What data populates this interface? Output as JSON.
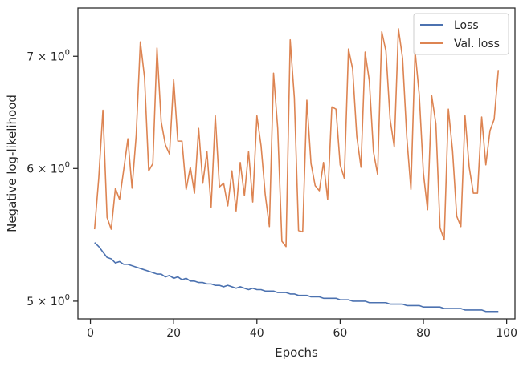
{
  "chart_data": {
    "type": "line",
    "title": "",
    "xlabel": "Epochs",
    "ylabel": "Negative log-likelihood",
    "xlim": [
      -3,
      102
    ],
    "ylim": [
      4.88,
      7.48
    ],
    "yscale": "log",
    "grid": false,
    "legend": "top-right",
    "x_ticks": [
      0,
      20,
      40,
      60,
      80,
      100
    ],
    "y_ticks": [
      {
        "value": 5,
        "mantissa": "5",
        "base": "10",
        "exp": "0"
      },
      {
        "value": 6,
        "mantissa": "6",
        "base": "10",
        "exp": "0"
      },
      {
        "value": 7,
        "mantissa": "7",
        "base": "10",
        "exp": "0"
      }
    ],
    "x": [
      1,
      2,
      3,
      4,
      5,
      6,
      7,
      8,
      9,
      10,
      11,
      12,
      13,
      14,
      15,
      16,
      17,
      18,
      19,
      20,
      21,
      22,
      23,
      24,
      25,
      26,
      27,
      28,
      29,
      30,
      31,
      32,
      33,
      34,
      35,
      36,
      37,
      38,
      39,
      40,
      41,
      42,
      43,
      44,
      45,
      46,
      47,
      48,
      49,
      50,
      51,
      52,
      53,
      54,
      55,
      56,
      57,
      58,
      59,
      60,
      61,
      62,
      63,
      64,
      65,
      66,
      67,
      68,
      69,
      70,
      71,
      72,
      73,
      74,
      75,
      76,
      77,
      78,
      79,
      80,
      81,
      82,
      83,
      84,
      85,
      86,
      87,
      88,
      89,
      90,
      91,
      92,
      93,
      94,
      95,
      96,
      97,
      98
    ],
    "series": [
      {
        "name": "Loss",
        "color": "#4c72b0",
        "values": [
          5.42,
          5.39,
          5.35,
          5.31,
          5.3,
          5.27,
          5.28,
          5.26,
          5.26,
          5.25,
          5.24,
          5.23,
          5.22,
          5.21,
          5.2,
          5.19,
          5.19,
          5.17,
          5.18,
          5.16,
          5.17,
          5.15,
          5.16,
          5.14,
          5.14,
          5.13,
          5.13,
          5.12,
          5.12,
          5.11,
          5.11,
          5.1,
          5.11,
          5.1,
          5.09,
          5.1,
          5.09,
          5.08,
          5.09,
          5.08,
          5.08,
          5.07,
          5.07,
          5.07,
          5.06,
          5.06,
          5.06,
          5.05,
          5.05,
          5.04,
          5.04,
          5.04,
          5.03,
          5.03,
          5.03,
          5.02,
          5.02,
          5.02,
          5.02,
          5.01,
          5.01,
          5.01,
          5.0,
          5.0,
          5.0,
          5.0,
          4.99,
          4.99,
          4.99,
          4.99,
          4.99,
          4.98,
          4.98,
          4.98,
          4.98,
          4.97,
          4.97,
          4.97,
          4.97,
          4.96,
          4.96,
          4.96,
          4.96,
          4.96,
          4.95,
          4.95,
          4.95,
          4.95,
          4.95,
          4.94,
          4.94,
          4.94,
          4.94,
          4.94,
          4.93,
          4.93,
          4.93,
          4.93
        ]
      },
      {
        "name": "Val. loss",
        "color": "#dd8452",
        "values": [
          5.52,
          5.92,
          6.5,
          5.61,
          5.52,
          5.84,
          5.75,
          5.99,
          6.25,
          5.84,
          6.28,
          7.14,
          6.8,
          5.98,
          6.04,
          7.08,
          6.4,
          6.2,
          6.12,
          6.78,
          6.23,
          6.23,
          5.83,
          6.01,
          5.8,
          6.34,
          5.88,
          6.14,
          5.69,
          6.45,
          5.85,
          5.88,
          5.7,
          5.98,
          5.66,
          6.05,
          5.78,
          6.14,
          5.73,
          6.45,
          6.19,
          5.79,
          5.54,
          6.84,
          6.34,
          5.43,
          5.39,
          7.16,
          6.61,
          5.51,
          5.5,
          6.59,
          6.04,
          5.86,
          5.82,
          6.05,
          5.75,
          6.53,
          6.51,
          6.03,
          5.92,
          7.07,
          6.88,
          6.27,
          6.01,
          7.04,
          6.77,
          6.14,
          5.95,
          7.24,
          7.05,
          6.42,
          6.18,
          7.27,
          6.98,
          6.27,
          5.83,
          7.05,
          6.64,
          5.96,
          5.67,
          6.63,
          6.38,
          5.53,
          5.44,
          6.51,
          6.15,
          5.62,
          5.54,
          6.45,
          6.01,
          5.8,
          5.8,
          6.44,
          6.03,
          6.32,
          6.42,
          6.87
        ]
      }
    ]
  }
}
